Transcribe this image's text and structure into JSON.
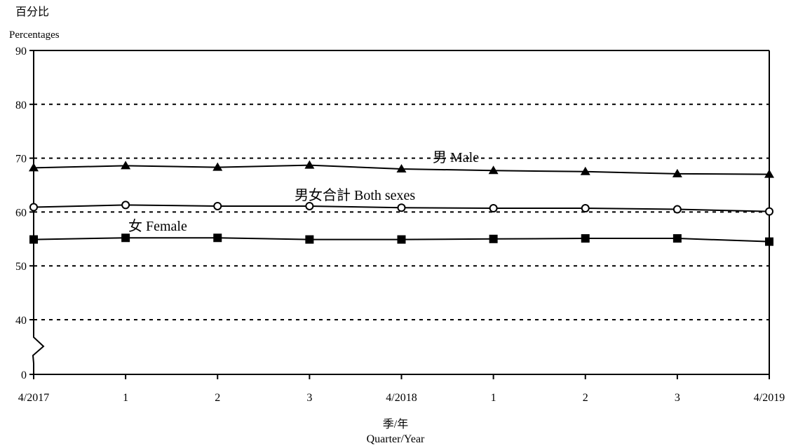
{
  "chart_data": {
    "type": "line",
    "ylabel_zh": "百分比",
    "ylabel_en": "Percentages",
    "xlabel_zh": "季/年",
    "xlabel_en": "Quarter/Year",
    "x": [
      "4/2017",
      "1",
      "2",
      "3",
      "4/2018",
      "1",
      "2",
      "3",
      "4/2019"
    ],
    "y_ticks": [
      0,
      40,
      50,
      60,
      70,
      80,
      90
    ],
    "ylim": [
      0,
      90
    ],
    "axis_break": "between 0 and 40",
    "grid": "horizontal dashed",
    "series": [
      {
        "name": "男  Male",
        "marker": "triangle",
        "values": [
          68.2,
          68.6,
          68.3,
          68.7,
          68.0,
          67.7,
          67.5,
          67.1,
          67.0
        ]
      },
      {
        "name": "男女合計  Both sexes",
        "marker": "circle",
        "values": [
          60.9,
          61.3,
          61.1,
          61.1,
          60.8,
          60.7,
          60.7,
          60.5,
          60.1
        ]
      },
      {
        "name": "女  Female",
        "marker": "square",
        "values": [
          54.9,
          55.2,
          55.2,
          54.9,
          54.9,
          55.0,
          55.1,
          55.1,
          54.5
        ]
      }
    ]
  }
}
